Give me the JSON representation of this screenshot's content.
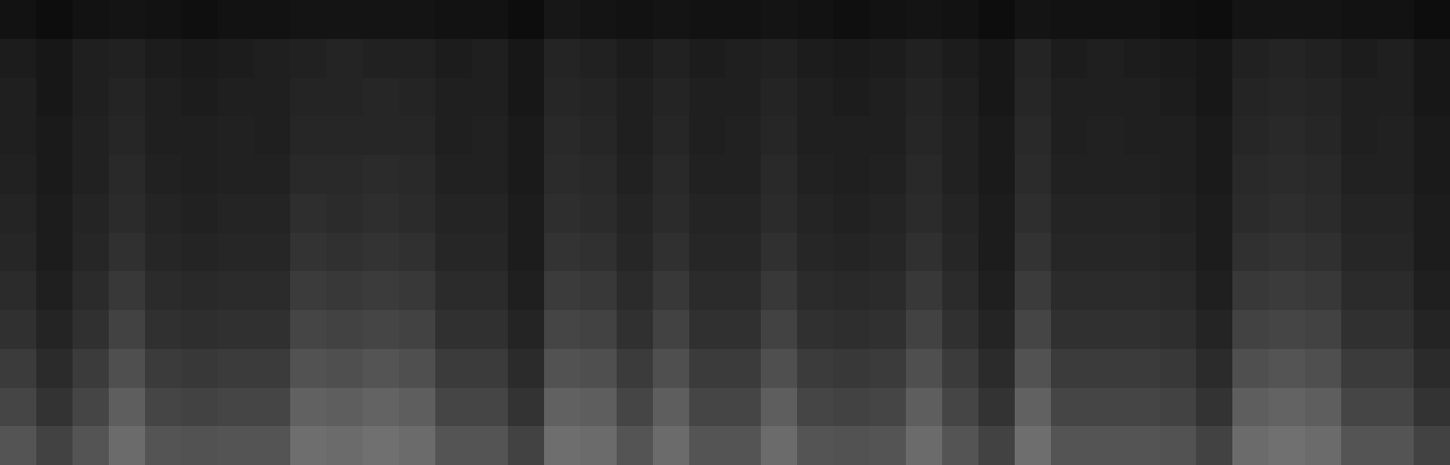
{
  "chart_data": {
    "type": "heatmap",
    "tick_labels": false,
    "zlim": [
      0,
      100
    ],
    "values": [
      [
        7,
        5,
        7,
        8,
        7,
        6,
        7,
        7,
        8,
        8,
        8,
        8,
        7,
        7,
        5,
        9,
        8,
        7,
        8,
        7,
        7,
        8,
        7,
        6,
        7,
        8,
        7,
        5,
        8,
        7,
        7,
        7,
        6,
        5,
        8,
        8,
        8,
        7,
        7,
        5
      ],
      [
        11,
        9,
        12,
        13,
        11,
        10,
        11,
        12,
        13,
        14,
        13,
        13,
        11,
        12,
        9,
        14,
        13,
        11,
        13,
        11,
        12,
        13,
        11,
        10,
        11,
        13,
        11,
        9,
        14,
        11,
        12,
        11,
        10,
        9,
        13,
        14,
        13,
        11,
        12,
        9
      ],
      [
        12,
        9,
        12,
        14,
        12,
        11,
        12,
        12,
        14,
        14,
        15,
        14,
        12,
        12,
        9,
        15,
        14,
        12,
        14,
        12,
        12,
        14,
        12,
        11,
        12,
        14,
        12,
        9,
        15,
        12,
        12,
        12,
        11,
        9,
        14,
        15,
        14,
        12,
        12,
        9
      ],
      [
        12,
        10,
        13,
        15,
        12,
        12,
        13,
        12,
        15,
        15,
        15,
        15,
        12,
        13,
        10,
        16,
        15,
        12,
        15,
        12,
        13,
        15,
        12,
        12,
        12,
        15,
        13,
        10,
        16,
        12,
        13,
        12,
        12,
        10,
        15,
        16,
        15,
        12,
        13,
        10
      ],
      [
        13,
        10,
        13,
        16,
        13,
        12,
        13,
        13,
        16,
        16,
        17,
        16,
        13,
        13,
        10,
        17,
        16,
        13,
        16,
        13,
        13,
        16,
        13,
        12,
        13,
        16,
        13,
        10,
        17,
        13,
        13,
        13,
        12,
        10,
        16,
        17,
        16,
        13,
        13,
        10
      ],
      [
        14,
        11,
        14,
        17,
        14,
        13,
        14,
        14,
        18,
        17,
        18,
        17,
        14,
        14,
        11,
        18,
        17,
        14,
        17,
        14,
        14,
        17,
        14,
        13,
        14,
        17,
        14,
        11,
        18,
        14,
        14,
        14,
        13,
        11,
        17,
        18,
        17,
        14,
        14,
        11
      ],
      [
        15,
        11,
        15,
        19,
        15,
        14,
        15,
        15,
        20,
        19,
        20,
        19,
        15,
        15,
        11,
        20,
        19,
        15,
        19,
        15,
        15,
        19,
        15,
        14,
        15,
        19,
        15,
        11,
        20,
        15,
        15,
        15,
        14,
        11,
        19,
        20,
        19,
        15,
        15,
        11
      ],
      [
        17,
        12,
        17,
        22,
        17,
        16,
        17,
        17,
        23,
        22,
        23,
        22,
        17,
        17,
        12,
        23,
        22,
        17,
        22,
        17,
        17,
        22,
        17,
        16,
        17,
        22,
        17,
        12,
        23,
        17,
        17,
        17,
        16,
        12,
        22,
        23,
        22,
        17,
        17,
        12
      ],
      [
        19,
        14,
        19,
        26,
        19,
        18,
        19,
        19,
        27,
        26,
        27,
        26,
        19,
        19,
        14,
        27,
        26,
        19,
        26,
        19,
        19,
        26,
        19,
        18,
        19,
        26,
        19,
        14,
        27,
        19,
        19,
        19,
        18,
        14,
        26,
        27,
        26,
        19,
        19,
        14
      ],
      [
        23,
        17,
        23,
        31,
        23,
        22,
        23,
        23,
        32,
        31,
        33,
        31,
        23,
        23,
        17,
        32,
        31,
        23,
        31,
        23,
        23,
        31,
        23,
        22,
        23,
        31,
        23,
        17,
        32,
        23,
        23,
        23,
        22,
        17,
        31,
        33,
        31,
        23,
        23,
        17
      ],
      [
        27,
        20,
        27,
        37,
        27,
        26,
        27,
        27,
        38,
        37,
        39,
        37,
        27,
        27,
        20,
        38,
        37,
        27,
        37,
        27,
        27,
        37,
        27,
        26,
        27,
        37,
        27,
        20,
        38,
        27,
        27,
        27,
        26,
        20,
        37,
        39,
        37,
        27,
        27,
        20
      ],
      [
        33,
        26,
        33,
        42,
        33,
        32,
        33,
        33,
        43,
        42,
        44,
        42,
        33,
        33,
        26,
        43,
        42,
        33,
        42,
        33,
        33,
        42,
        33,
        32,
        33,
        42,
        33,
        26,
        43,
        33,
        33,
        33,
        32,
        26,
        42,
        44,
        42,
        33,
        33,
        26
      ]
    ]
  }
}
